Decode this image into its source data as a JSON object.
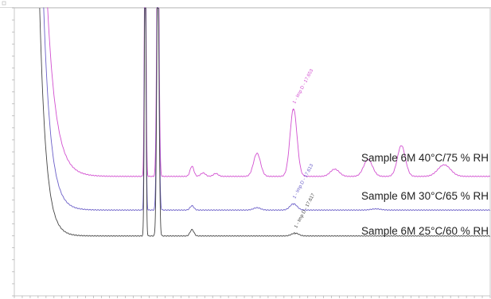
{
  "chart_data": {
    "type": "line",
    "title": "",
    "xlabel": "",
    "ylabel": "",
    "grid": false,
    "legend": "none",
    "xlim": [
      0,
      30
    ],
    "ylim": [
      0,
      1
    ],
    "series": [
      {
        "name": "Sample 6M 40°C/75 % RH",
        "color": "#d24fd0",
        "baseline": 0.415,
        "front": {
          "x": 2.1,
          "top": 1.0,
          "settle": 0.55
        },
        "peaks": [
          {
            "x": 11.2,
            "height": 0.035,
            "width": 0.12
          },
          {
            "x": 11.9,
            "height": 0.012,
            "width": 0.15
          },
          {
            "x": 12.7,
            "height": 0.01,
            "width": 0.15
          },
          {
            "x": 15.3,
            "height": 0.08,
            "width": 0.22
          },
          {
            "x": 17.6,
            "height": 0.235,
            "width": 0.22,
            "label": "1 - Imp D - 17.653"
          },
          {
            "x": 20.2,
            "height": 0.025,
            "width": 0.28
          },
          {
            "x": 22.3,
            "height": 0.058,
            "width": 0.28
          },
          {
            "x": 24.4,
            "height": 0.107,
            "width": 0.25
          },
          {
            "x": 27.1,
            "height": 0.04,
            "width": 0.4
          }
        ]
      },
      {
        "name": "Sample 6M 30°C/65 % RH",
        "color": "#6b5fc8",
        "baseline": 0.298,
        "front": {
          "x": 1.85,
          "top": 1.0,
          "settle": 0.45
        },
        "peaks": [
          {
            "x": 11.2,
            "height": 0.015,
            "width": 0.12
          },
          {
            "x": 15.3,
            "height": 0.008,
            "width": 0.22
          },
          {
            "x": 17.6,
            "height": 0.022,
            "width": 0.22,
            "label": "1 - Imp D - 17.613"
          },
          {
            "x": 22.8,
            "height": 0.004,
            "width": 0.3
          }
        ]
      },
      {
        "name": "Sample 6M 25°C/60 % RH",
        "color": "#444444",
        "baseline": 0.208,
        "front": {
          "x": 1.6,
          "top": 1.0,
          "settle": 0.4
        },
        "peaks": [
          {
            "x": 11.2,
            "height": 0.022,
            "width": 0.12
          },
          {
            "x": 17.7,
            "height": 0.01,
            "width": 0.22,
            "label": "1 - Imp D - 17.617"
          }
        ]
      }
    ],
    "shared_peaks": [
      {
        "x": 8.25,
        "height": 1.0,
        "width": 0.05
      },
      {
        "x": 9.05,
        "height": 0.96,
        "width": 0.07
      }
    ]
  }
}
